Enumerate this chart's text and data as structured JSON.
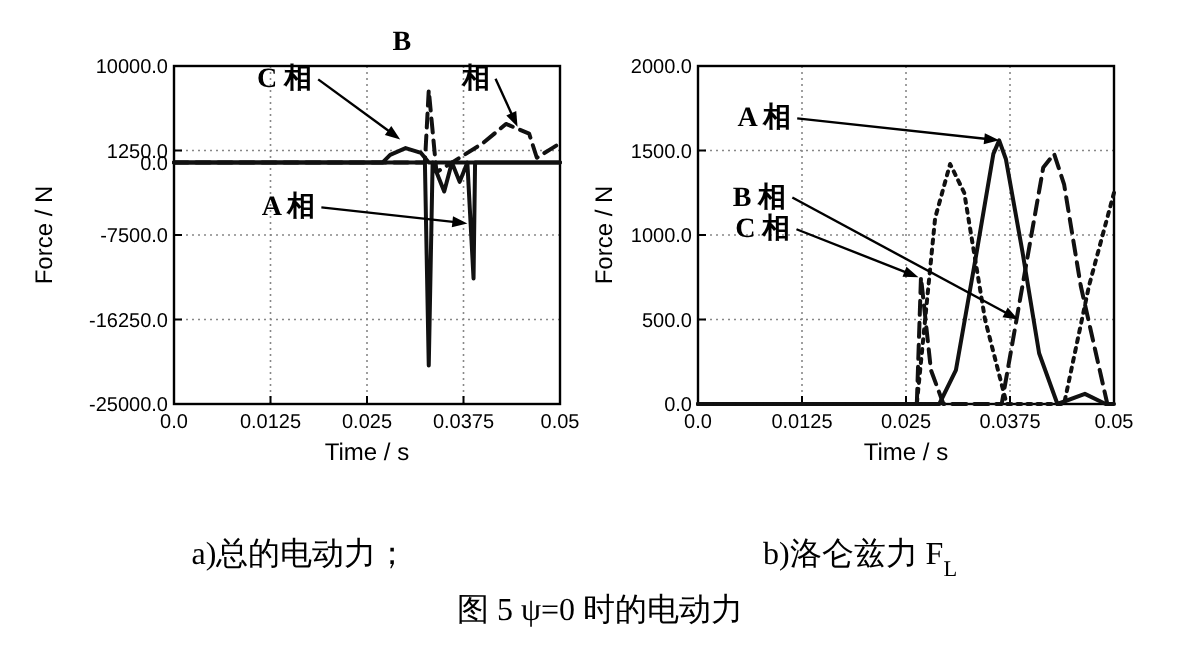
{
  "chart_data": [
    {
      "type": "line",
      "title": "a)总的电动力；",
      "xlabel": "Time  / s",
      "ylabel": "Force / N",
      "xlim": [
        0,
        0.05
      ],
      "xticks": [
        {
          "value": 0,
          "label": "0.0"
        },
        0.0125,
        0.025,
        0.0375,
        0.05
      ],
      "ylim": [
        -25000,
        10000
      ],
      "yticks": [
        {
          "value": 10000,
          "label": "10000.0"
        },
        {
          "value": 1250,
          "label": "1250.0"
        },
        {
          "value": 0,
          "label": "0.0"
        },
        {
          "value": -7500,
          "label": "-7500.0"
        },
        {
          "value": -16250,
          "label": "-16250.0"
        },
        {
          "value": -25000,
          "label": "-25000.0"
        }
      ],
      "grid": true,
      "series": [
        {
          "color": "#111111",
          "line_style": "solid",
          "x": [
            0,
            0.027,
            0.028,
            0.03,
            0.032,
            0.033,
            0.05
          ],
          "values": [
            0,
            0,
            800,
            1500,
            1000,
            0,
            0
          ]
        },
        {
          "color": "#111111",
          "line_style": "solid",
          "x": [
            0,
            0.0325,
            0.033,
            0.0335,
            0.035,
            0.036,
            0.037,
            0.038,
            0.0388,
            0.039,
            0.05
          ],
          "values": [
            0,
            0,
            -21000,
            0,
            -3000,
            0,
            -2000,
            0,
            -12000,
            0,
            0
          ]
        },
        {
          "color": "#111111",
          "line_style": "dashed",
          "x": [
            0,
            0.0325,
            0.033,
            0.034,
            0.036,
            0.04,
            0.043,
            0.046,
            0.047,
            0.049,
            0.05
          ],
          "values": [
            0,
            0,
            7500,
            -1000,
            0,
            2000,
            4000,
            3000,
            500,
            1500,
            2000
          ]
        }
      ],
      "annotations": [
        {
          "text": "C 相",
          "x": 0.0293,
          "y": 2400
        },
        {
          "text": "B",
          "x": 0.0328,
          "y": 7500
        },
        {
          "text": "相",
          "x": 0.0445,
          "y": 3700
        },
        {
          "text": "A 相",
          "x": 0.038,
          "y": -6300
        },
        "图 5   ψ=0 时的电动力"
      ]
    },
    {
      "type": "line",
      "title": "b)洛仑兹力 F$_{L}$",
      "xlabel": "Time / s",
      "ylabel": "Force  / N",
      "xlim": [
        0,
        0.05
      ],
      "xticks": [
        {
          "value": 0,
          "label": "0.0"
        },
        0.0125,
        0.025,
        0.0375,
        0.05
      ],
      "ylim": [
        0,
        2000
      ],
      "yticks": [
        {
          "value": 0,
          "label": "0.0"
        },
        {
          "value": 500,
          "label": "500.0"
        },
        {
          "value": 1000,
          "label": "1000.0"
        },
        {
          "value": 1500,
          "label": "1500.0"
        },
        {
          "value": 2000,
          "label": "2000.0"
        }
      ],
      "grid": true,
      "series": [
        {
          "color": "#111111",
          "line_style": "solid",
          "x": [
            0,
            0.029,
            0.031,
            0.0335,
            0.0355,
            0.0362,
            0.037,
            0.039,
            0.041,
            0.0432,
            0.0465,
            0.049,
            0.05
          ],
          "values": [
            0,
            0,
            200,
            900,
            1480,
            1560,
            1450,
            900,
            300,
            0,
            60,
            0,
            0
          ]
        },
        {
          "color": "#111111",
          "line_style": "dashed",
          "x": [
            0,
            0.0263,
            0.0268,
            0.028,
            0.0295,
            0.0365,
            0.039,
            0.0415,
            0.0428,
            0.044,
            0.046,
            0.0492,
            0.05
          ],
          "values": [
            0,
            0,
            750,
            200,
            0,
            0,
            700,
            1400,
            1480,
            1300,
            700,
            0,
            0
          ]
        },
        {
          "color": "#111111",
          "line_style": "dotted",
          "x": [
            0,
            0.0263,
            0.0285,
            0.0303,
            0.032,
            0.0345,
            0.0371,
            0.044,
            0.047,
            0.05
          ],
          "values": [
            0,
            0,
            1100,
            1420,
            1250,
            500,
            0,
            0,
            700,
            1250
          ]
        }
      ],
      "annotations": [
        {
          "text": "A 相",
          "x": 0.0362,
          "y": 1560
        },
        {
          "text": "B 相",
          "x": 0.0385,
          "y": 500
        },
        {
          "text": "C 相",
          "x": 0.0265,
          "y": 750
        }
      ]
    }
  ]
}
